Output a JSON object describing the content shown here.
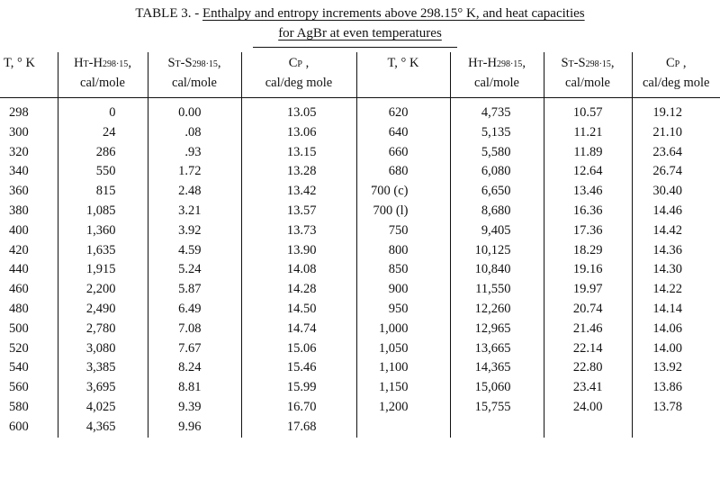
{
  "caption": {
    "prefix": "TABLE 3. - ",
    "line1": "Enthalpy and entropy increments above 298.15° K, and heat capacities",
    "line2": "for AgBr at even temperatures"
  },
  "headers": {
    "temp": "T, ° K",
    "h_sym": "H",
    "h_sub1": "T",
    "h_mid": "-H",
    "h_sub2": "298·15",
    "h_tail": ",",
    "h_unit": "cal/mole",
    "s_sym": "S",
    "s_sub1": "T",
    "s_mid": "-S",
    "s_sub2": "298·15",
    "s_tail": ",",
    "s_unit": "cal/mole",
    "cp_sym": "C",
    "cp_sub": "P",
    "cp_tail": " ,",
    "cp_unit": "cal/deg mole"
  },
  "rows": [
    [
      "298",
      "0",
      "0.00",
      "13.05",
      "620",
      "4,735",
      "10.57",
      "19.12"
    ],
    [
      "300",
      "24",
      ".08",
      "13.06",
      "640",
      "5,135",
      "11.21",
      "21.10"
    ],
    [
      "320",
      "286",
      ".93",
      "13.15",
      "660",
      "5,580",
      "11.89",
      "23.64"
    ],
    [
      "340",
      "550",
      "1.72",
      "13.28",
      "680",
      "6,080",
      "12.64",
      "26.74"
    ],
    [
      "360",
      "815",
      "2.48",
      "13.42",
      "700 (c)",
      "6,650",
      "13.46",
      "30.40"
    ],
    [
      "380",
      "1,085",
      "3.21",
      "13.57",
      "700 (l)",
      "8,680",
      "16.36",
      "14.46"
    ],
    [
      "400",
      "1,360",
      "3.92",
      "13.73",
      "750",
      "9,405",
      "17.36",
      "14.42"
    ],
    [
      "420",
      "1,635",
      "4.59",
      "13.90",
      "800",
      "10,125",
      "18.29",
      "14.36"
    ],
    [
      "440",
      "1,915",
      "5.24",
      "14.08",
      "850",
      "10,840",
      "19.16",
      "14.30"
    ],
    [
      "460",
      "2,200",
      "5.87",
      "14.28",
      "900",
      "11,550",
      "19.97",
      "14.22"
    ],
    [
      "480",
      "2,490",
      "6.49",
      "14.50",
      "950",
      "12,260",
      "20.74",
      "14.14"
    ],
    [
      "500",
      "2,780",
      "7.08",
      "14.74",
      "1,000",
      "12,965",
      "21.46",
      "14.06"
    ],
    [
      "520",
      "3,080",
      "7.67",
      "15.06",
      "1,050",
      "13,665",
      "22.14",
      "14.00"
    ],
    [
      "540",
      "3,385",
      "8.24",
      "15.46",
      "1,100",
      "14,365",
      "22.80",
      "13.92"
    ],
    [
      "560",
      "3,695",
      "8.81",
      "15.99",
      "1,150",
      "15,060",
      "23.41",
      "13.86"
    ],
    [
      "580",
      "4,025",
      "9.39",
      "16.70",
      "1,200",
      "15,755",
      "24.00",
      "13.78"
    ],
    [
      "600",
      "4,365",
      "9.96",
      "17.68",
      "",
      "",
      "",
      ""
    ]
  ]
}
